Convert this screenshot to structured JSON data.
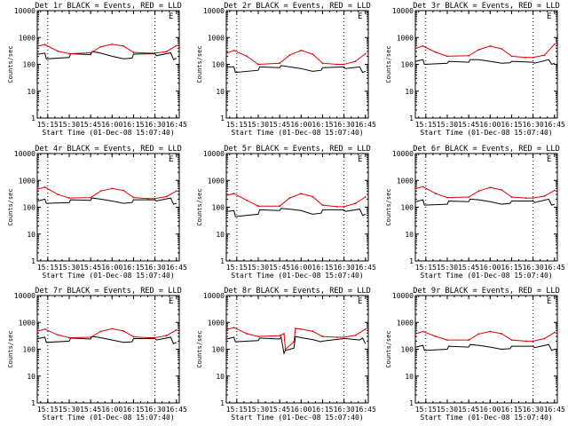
{
  "figure": {
    "background": "#ffffff",
    "event_color": "#000000",
    "lld_color": "#e00000"
  },
  "chart_data": [
    {
      "type": "line",
      "title": "Det 1r BLACK = Events, RED = LLD",
      "marker": "E",
      "xlabel": "Start Time (01-Dec-08 15:07:40)",
      "ylabel": "Counts/sec",
      "yscale": "log",
      "ylim": [
        1,
        10000
      ],
      "xticks": [
        "15:15",
        "15:30",
        "15:45",
        "16:00",
        "16:15",
        "16:30",
        "16:45"
      ],
      "yticks": [
        "1",
        "10",
        "100",
        "1000",
        "10000"
      ],
      "vlines": [
        "15:15",
        "16:30"
      ],
      "series": [
        {
          "name": "Events",
          "color": "#000000",
          "x": [
            "15:08",
            "15:13",
            "15:14",
            "15:30",
            "15:31",
            "15:45",
            "15:46",
            "15:52",
            "16:00",
            "16:08",
            "16:14",
            "16:15",
            "16:30",
            "16:31",
            "16:41",
            "16:43",
            "16:45"
          ],
          "y": [
            240,
            260,
            160,
            180,
            250,
            230,
            300,
            260,
            200,
            160,
            170,
            240,
            250,
            210,
            270,
            150,
            170
          ]
        },
        {
          "name": "LLD",
          "color": "#e00000",
          "x": [
            "15:08",
            "15:13",
            "15:22",
            "15:30",
            "15:45",
            "15:52",
            "16:00",
            "16:08",
            "16:15",
            "16:25",
            "16:30",
            "16:38",
            "16:45"
          ],
          "y": [
            480,
            540,
            310,
            250,
            270,
            450,
            560,
            480,
            280,
            260,
            260,
            300,
            500
          ]
        }
      ]
    },
    {
      "type": "line",
      "title": "Det 2r BLACK = Events, RED = LLD",
      "marker": "E",
      "xlabel": "Start Time (01-Dec-08 15:07:40)",
      "ylabel": "Counts/sec",
      "yscale": "log",
      "ylim": [
        1,
        10000
      ],
      "xticks": [
        "15:15",
        "15:30",
        "15:45",
        "16:00",
        "16:15",
        "16:30",
        "16:45"
      ],
      "yticks": [
        "1",
        "10",
        "100",
        "1000",
        "10000"
      ],
      "vlines": [
        "15:15",
        "16:30"
      ],
      "series": [
        {
          "name": "Events",
          "color": "#000000",
          "x": [
            "15:08",
            "15:13",
            "15:14",
            "15:30",
            "15:31",
            "15:45",
            "15:46",
            "15:52",
            "16:00",
            "16:08",
            "16:14",
            "16:15",
            "16:30",
            "16:31",
            "16:41",
            "16:43",
            "16:45"
          ],
          "y": [
            80,
            80,
            50,
            60,
            80,
            75,
            90,
            80,
            70,
            55,
            60,
            75,
            80,
            70,
            80,
            50,
            55
          ]
        },
        {
          "name": "LLD",
          "color": "#e00000",
          "x": [
            "15:08",
            "15:13",
            "15:22",
            "15:30",
            "15:45",
            "15:52",
            "16:00",
            "16:08",
            "16:15",
            "16:25",
            "16:30",
            "16:38",
            "16:45"
          ],
          "y": [
            260,
            330,
            200,
            100,
            110,
            220,
            330,
            240,
            110,
            100,
            100,
            130,
            250
          ]
        }
      ]
    },
    {
      "type": "line",
      "title": "Det 3r BLACK = Events, RED = LLD",
      "marker": "E",
      "xlabel": "Start Time (01-Dec-08 15:07:40)",
      "ylabel": "Counts/sec",
      "yscale": "log",
      "ylim": [
        1,
        10000
      ],
      "xticks": [
        "15:15",
        "15:30",
        "15:45",
        "16:00",
        "16:15",
        "16:30",
        "16:45"
      ],
      "yticks": [
        "1",
        "10",
        "100",
        "1000",
        "10000"
      ],
      "vlines": [
        "15:15",
        "16:30"
      ],
      "series": [
        {
          "name": "Events",
          "color": "#000000",
          "x": [
            "15:08",
            "15:13",
            "15:14",
            "15:30",
            "15:31",
            "15:45",
            "15:46",
            "15:52",
            "16:00",
            "16:08",
            "16:14",
            "16:15",
            "16:30",
            "16:31",
            "16:41",
            "16:43",
            "16:45"
          ],
          "y": [
            130,
            150,
            100,
            110,
            130,
            120,
            150,
            150,
            130,
            110,
            115,
            130,
            120,
            110,
            150,
            100,
            110
          ]
        },
        {
          "name": "LLD",
          "color": "#e00000",
          "x": [
            "15:08",
            "15:13",
            "15:22",
            "15:30",
            "15:45",
            "15:52",
            "16:00",
            "16:08",
            "16:15",
            "16:25",
            "16:30",
            "16:38",
            "16:45"
          ],
          "y": [
            400,
            480,
            280,
            200,
            210,
            350,
            480,
            380,
            200,
            180,
            180,
            220,
            560
          ]
        }
      ]
    },
    {
      "type": "line",
      "title": "Det 4r BLACK = Events, RED = LLD",
      "marker": "E",
      "xlabel": "Start Time (01-Dec-08 15:07:40)",
      "ylabel": "Counts/sec",
      "yscale": "log",
      "ylim": [
        1,
        10000
      ],
      "xticks": [
        "15:15",
        "15:30",
        "15:45",
        "16:00",
        "16:15",
        "16:30",
        "16:45"
      ],
      "yticks": [
        "1",
        "10",
        "100",
        "1000",
        "10000"
      ],
      "vlines": [
        "15:15",
        "16:30"
      ],
      "series": [
        {
          "name": "Events",
          "color": "#000000",
          "x": [
            "15:08",
            "15:13",
            "15:14",
            "15:30",
            "15:31",
            "15:45",
            "15:46",
            "15:52",
            "16:00",
            "16:08",
            "16:14",
            "16:15",
            "16:30",
            "16:31",
            "16:41",
            "16:43",
            "16:45"
          ],
          "y": [
            170,
            200,
            140,
            150,
            190,
            180,
            220,
            200,
            170,
            140,
            150,
            190,
            190,
            170,
            220,
            130,
            140
          ]
        },
        {
          "name": "LLD",
          "color": "#e00000",
          "x": [
            "15:08",
            "15:13",
            "15:22",
            "15:30",
            "15:45",
            "15:52",
            "16:00",
            "16:08",
            "16:15",
            "16:25",
            "16:30",
            "16:38",
            "16:45"
          ],
          "y": [
            480,
            560,
            300,
            220,
            230,
            400,
            500,
            420,
            230,
            210,
            210,
            250,
            400
          ]
        }
      ]
    },
    {
      "type": "line",
      "title": "Det 5r BLACK = Events, RED = LLD",
      "marker": "E",
      "xlabel": "Start Time (01-Dec-08 15:07:40)",
      "ylabel": "Counts/sec",
      "yscale": "log",
      "ylim": [
        1,
        10000
      ],
      "xticks": [
        "15:15",
        "15:30",
        "15:45",
        "16:00",
        "16:15",
        "16:30",
        "16:45"
      ],
      "yticks": [
        "1",
        "10",
        "100",
        "1000",
        "10000"
      ],
      "vlines": [
        "15:15",
        "16:30"
      ],
      "series": [
        {
          "name": "Events",
          "color": "#000000",
          "x": [
            "15:08",
            "15:13",
            "15:14",
            "15:30",
            "15:31",
            "15:45",
            "15:46",
            "15:52",
            "16:00",
            "16:08",
            "16:14",
            "16:15",
            "16:30",
            "16:31",
            "16:41",
            "16:43",
            "16:45"
          ],
          "y": [
            70,
            75,
            45,
            55,
            80,
            75,
            90,
            85,
            75,
            55,
            60,
            80,
            80,
            70,
            85,
            50,
            55
          ]
        },
        {
          "name": "LLD",
          "color": "#e00000",
          "x": [
            "15:08",
            "15:13",
            "15:22",
            "15:30",
            "15:45",
            "15:52",
            "16:00",
            "16:08",
            "16:15",
            "16:25",
            "16:30",
            "16:38",
            "16:45"
          ],
          "y": [
            280,
            320,
            180,
            110,
            110,
            220,
            320,
            250,
            120,
            105,
            105,
            140,
            240
          ]
        }
      ]
    },
    {
      "type": "line",
      "title": "Det 6r BLACK = Events, RED = LLD",
      "marker": "E",
      "xlabel": "Start Time (01-Dec-08 15:07:40)",
      "ylabel": "Counts/sec",
      "yscale": "log",
      "ylim": [
        1,
        10000
      ],
      "xticks": [
        "15:15",
        "15:30",
        "15:45",
        "16:00",
        "16:15",
        "16:30",
        "16:45"
      ],
      "yticks": [
        "1",
        "10",
        "100",
        "1000",
        "10000"
      ],
      "vlines": [
        "15:15",
        "16:30"
      ],
      "series": [
        {
          "name": "Events",
          "color": "#000000",
          "x": [
            "15:08",
            "15:13",
            "15:14",
            "15:30",
            "15:31",
            "15:45",
            "15:46",
            "15:52",
            "16:00",
            "16:08",
            "16:14",
            "16:15",
            "16:30",
            "16:31",
            "16:41",
            "16:43",
            "16:45"
          ],
          "y": [
            160,
            190,
            120,
            130,
            170,
            160,
            200,
            190,
            160,
            130,
            140,
            170,
            170,
            150,
            200,
            120,
            130
          ]
        },
        {
          "name": "LLD",
          "color": "#e00000",
          "x": [
            "15:08",
            "15:13",
            "15:22",
            "15:30",
            "15:45",
            "15:52",
            "16:00",
            "16:08",
            "16:15",
            "16:25",
            "16:30",
            "16:38",
            "16:45"
          ],
          "y": [
            500,
            580,
            320,
            230,
            240,
            400,
            540,
            440,
            240,
            220,
            220,
            260,
            420
          ]
        }
      ]
    },
    {
      "type": "line",
      "title": "Det 7r BLACK = Events, RED = LLD",
      "marker": "E",
      "xlabel": "Start Time (01-Dec-08 15:07:40)",
      "ylabel": "Counts/sec",
      "yscale": "log",
      "ylim": [
        1,
        10000
      ],
      "xticks": [
        "15:15",
        "15:30",
        "15:45",
        "16:00",
        "16:15",
        "16:30",
        "16:45"
      ],
      "yticks": [
        "1",
        "10",
        "100",
        "1000",
        "10000"
      ],
      "vlines": [
        "15:15",
        "16:30"
      ],
      "series": [
        {
          "name": "Events",
          "color": "#000000",
          "x": [
            "15:08",
            "15:13",
            "15:14",
            "15:30",
            "15:31",
            "15:45",
            "15:46",
            "15:52",
            "16:00",
            "16:08",
            "16:14",
            "16:15",
            "16:30",
            "16:31",
            "16:41",
            "16:43",
            "16:45"
          ],
          "y": [
            250,
            280,
            180,
            200,
            260,
            240,
            300,
            270,
            220,
            180,
            190,
            250,
            250,
            220,
            280,
            160,
            180
          ]
        },
        {
          "name": "LLD",
          "color": "#e00000",
          "x": [
            "15:08",
            "15:13",
            "15:22",
            "15:30",
            "15:45",
            "15:52",
            "16:00",
            "16:08",
            "16:15",
            "16:25",
            "16:30",
            "16:38",
            "16:45"
          ],
          "y": [
            480,
            560,
            340,
            270,
            280,
            460,
            580,
            480,
            290,
            270,
            270,
            320,
            520
          ]
        }
      ]
    },
    {
      "type": "line",
      "title": "Det 8r BLACK = Events, RED = LLD",
      "marker": "E",
      "xlabel": "Start Time (01-Dec-08 15:07:40)",
      "ylabel": "Counts/sec",
      "yscale": "log",
      "ylim": [
        1,
        10000
      ],
      "xticks": [
        "15:15",
        "15:30",
        "15:45",
        "16:00",
        "16:15",
        "16:30",
        "16:45"
      ],
      "yticks": [
        "1",
        "10",
        "100",
        "1000",
        "10000"
      ],
      "vlines": [
        "15:15",
        "16:30"
      ],
      "series": [
        {
          "name": "Events",
          "color": "#000000",
          "x": [
            "15:08",
            "15:13",
            "15:14",
            "15:30",
            "15:31",
            "15:45",
            "15:46",
            "15:48",
            "15:49",
            "15:55",
            "15:56",
            "16:00",
            "16:08",
            "16:14",
            "16:15",
            "16:30",
            "16:31",
            "16:41",
            "16:43",
            "16:45"
          ],
          "y": [
            240,
            280,
            190,
            210,
            260,
            240,
            290,
            70,
            90,
            110,
            300,
            270,
            230,
            190,
            200,
            250,
            250,
            220,
            260,
            160
          ]
        },
        {
          "name": "LLD",
          "color": "#e00000",
          "x": [
            "15:08",
            "15:13",
            "15:22",
            "15:30",
            "15:45",
            "15:48",
            "15:49",
            "15:55",
            "15:56",
            "16:00",
            "16:08",
            "16:15",
            "16:25",
            "16:30",
            "16:38",
            "16:45"
          ],
          "y": [
            550,
            640,
            380,
            300,
            320,
            380,
            100,
            190,
            600,
            560,
            470,
            300,
            280,
            280,
            330,
            560
          ]
        }
      ]
    },
    {
      "type": "line",
      "title": "Det 9r BLACK = Events, RED = LLD",
      "marker": "E",
      "xlabel": "Start Time (01-Dec-08 15:07:40)",
      "ylabel": "Counts/sec",
      "yscale": "log",
      "ylim": [
        1,
        10000
      ],
      "xticks": [
        "15:15",
        "15:30",
        "15:45",
        "16:00",
        "16:15",
        "16:30",
        "16:45"
      ],
      "yticks": [
        "1",
        "10",
        "100",
        "1000",
        "10000"
      ],
      "vlines": [
        "15:15",
        "16:30"
      ],
      "series": [
        {
          "name": "Events",
          "color": "#000000",
          "x": [
            "15:08",
            "15:13",
            "15:14",
            "15:30",
            "15:31",
            "15:45",
            "15:46",
            "15:52",
            "16:00",
            "16:08",
            "16:14",
            "16:15",
            "16:30",
            "16:31",
            "16:41",
            "16:43",
            "16:45"
          ],
          "y": [
            120,
            140,
            90,
            100,
            130,
            120,
            150,
            140,
            120,
            100,
            105,
            130,
            130,
            115,
            150,
            90,
            100
          ]
        },
        {
          "name": "LLD",
          "color": "#e00000",
          "x": [
            "15:08",
            "15:13",
            "15:22",
            "15:30",
            "15:45",
            "15:52",
            "16:00",
            "16:08",
            "16:15",
            "16:25",
            "16:30",
            "16:38",
            "16:45"
          ],
          "y": [
            380,
            460,
            300,
            220,
            220,
            370,
            460,
            380,
            220,
            200,
            200,
            250,
            420
          ]
        }
      ]
    }
  ]
}
